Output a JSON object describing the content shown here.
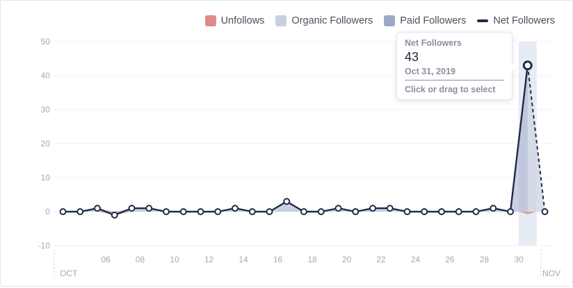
{
  "legend": [
    {
      "label": "Unfollows",
      "color": "#e08a8a",
      "kind": "box"
    },
    {
      "label": "Organic Followers",
      "color": "#c7cfe0",
      "kind": "box"
    },
    {
      "label": "Paid Followers",
      "color": "#9ea9c8",
      "kind": "box"
    },
    {
      "label": "Net Followers",
      "color": "#1e2a4a",
      "kind": "line"
    }
  ],
  "tooltip": {
    "title": "Net Followers",
    "value": "43",
    "date": "Oct 31, 2019",
    "hint": "Click or drag to select"
  },
  "colors": {
    "net_line": "#1e2a4a",
    "net_fill": "#9ea9c8",
    "unfollow": "#e08a8a",
    "highlight": "#e7ebf3",
    "grid": "#eef0f4"
  },
  "chart_data": {
    "type": "line",
    "ylim": [
      -10,
      50
    ],
    "y_ticks": [
      -10,
      0,
      10,
      20,
      30,
      40,
      50
    ],
    "x_tick_labels": [
      "06",
      "08",
      "10",
      "12",
      "14",
      "16",
      "18",
      "20",
      "22",
      "24",
      "26",
      "28",
      "30"
    ],
    "x_month_labels": [
      "OCT",
      "NOV"
    ],
    "series": [
      {
        "name": "Net Followers",
        "x": [
          "Oct 4",
          "Oct 5",
          "Oct 6",
          "Oct 7",
          "Oct 8",
          "Oct 9",
          "Oct 10",
          "Oct 11",
          "Oct 12",
          "Oct 13",
          "Oct 14",
          "Oct 15",
          "Oct 16",
          "Oct 17",
          "Oct 18",
          "Oct 19",
          "Oct 20",
          "Oct 21",
          "Oct 22",
          "Oct 23",
          "Oct 24",
          "Oct 25",
          "Oct 26",
          "Oct 27",
          "Oct 28",
          "Oct 29",
          "Oct 30",
          "Oct 31",
          "Nov 1"
        ],
        "values": [
          0,
          0,
          1,
          -1,
          1,
          1,
          0,
          0,
          0,
          0,
          1,
          0,
          0,
          3,
          0,
          0,
          1,
          0,
          1,
          1,
          0,
          0,
          0,
          0,
          0,
          1,
          0,
          43,
          0
        ]
      }
    ],
    "highlighted_point": {
      "x": "Oct 31",
      "value": 43
    }
  }
}
